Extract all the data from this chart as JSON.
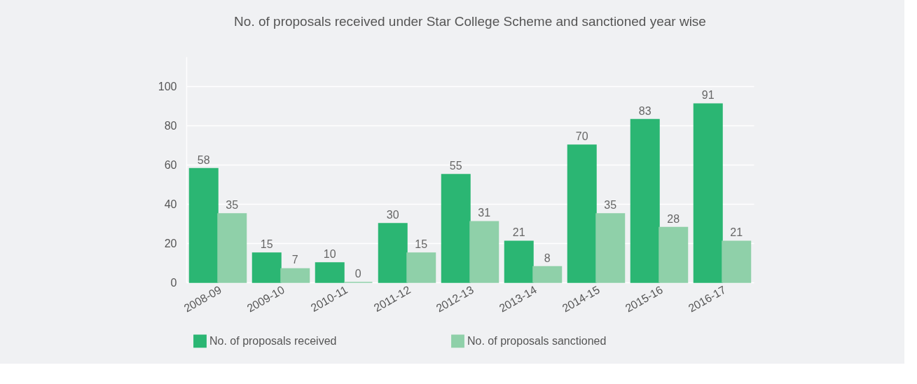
{
  "chart_data": {
    "type": "bar",
    "title": "No. of proposals received under Star College Scheme and sanctioned year wise",
    "categories": [
      "2008-09",
      "2009-10",
      "2010-11",
      "2011-12",
      "2012-13",
      "2013-14",
      "2014-15",
      "2015-16",
      "2016-17"
    ],
    "series": [
      {
        "name": "No. of proposals received",
        "color": "#2bb673",
        "values": [
          58,
          15,
          10,
          30,
          55,
          21,
          70,
          83,
          91
        ]
      },
      {
        "name": "No. of proposals sanctioned",
        "color": "#8fd0a9",
        "values": [
          35,
          7,
          0,
          15,
          31,
          8,
          35,
          28,
          21
        ]
      }
    ],
    "ylim": [
      0,
      115
    ],
    "yticks": [
      0,
      20,
      40,
      60,
      80,
      100
    ],
    "grid": "y",
    "legend": "bottom",
    "data_labels": true
  }
}
